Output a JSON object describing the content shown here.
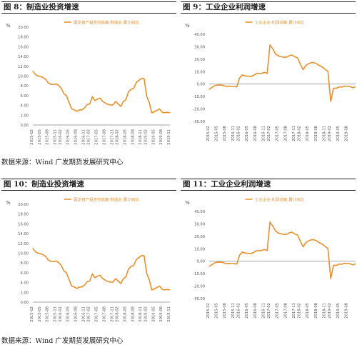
{
  "panels": [
    {
      "fig": "图 8：",
      "title": "制造业投资增速",
      "unit": "%",
      "chart_data": {
        "type": "line",
        "series": [
          {
            "name": "固定资产投资完成额:制造业:累计同比",
            "color": "#e8902c",
            "x": [
              "2015-02",
              "2015-03",
              "2015-04",
              "2015-05",
              "2015-06",
              "2015-07",
              "2015-08",
              "2015-09",
              "2015-10",
              "2015-11",
              "2015-12",
              "2016-02",
              "2016-03",
              "2016-04",
              "2016-05",
              "2016-06",
              "2016-07",
              "2016-08",
              "2016-09",
              "2016-10",
              "2016-11",
              "2016-12",
              "2017-02",
              "2017-03",
              "2017-04",
              "2017-05",
              "2017-06",
              "2017-07",
              "2017-08",
              "2017-09",
              "2017-10",
              "2017-11",
              "2017-12",
              "2018-02",
              "2018-03",
              "2018-04",
              "2018-05",
              "2018-06",
              "2018-07",
              "2018-08",
              "2018-09",
              "2018-10",
              "2018-11",
              "2018-12",
              "2019-02",
              "2019-03",
              "2019-04",
              "2019-05",
              "2019-06",
              "2019-07",
              "2019-08",
              "2019-09",
              "2019-10",
              "2019-11"
            ],
            "values": [
              11.0,
              10.3,
              10.0,
              9.9,
              9.7,
              9.3,
              8.6,
              8.3,
              8.3,
              8.4,
              8.1,
              7.5,
              6.4,
              6.0,
              4.6,
              3.3,
              3.1,
              2.8,
              3.1,
              3.1,
              3.5,
              4.2,
              4.3,
              5.8,
              5.0,
              5.3,
              5.5,
              4.8,
              4.5,
              4.2,
              4.1,
              4.1,
              4.8,
              4.3,
              3.8,
              4.8,
              5.2,
              6.8,
              7.3,
              7.5,
              8.7,
              9.1,
              9.5,
              9.5,
              5.9,
              4.6,
              2.5,
              2.7,
              3.0,
              3.3,
              2.6,
              2.5,
              2.6,
              2.5
            ]
          }
        ],
        "ylim": [
          0,
          20
        ],
        "yticks": [
          "0.00",
          "2.00",
          "4.00",
          "6.00",
          "8.00",
          "10.00",
          "12.00",
          "14.00",
          "16.00",
          "18.00",
          "20.00"
        ],
        "xtick_labels": [
          "2015-02",
          "2015-05",
          "2015-08",
          "2015-11",
          "2016-02",
          "2016-05",
          "2016-08",
          "2016-11",
          "2017-02",
          "2017-05",
          "2017-08",
          "2017-11",
          "2018-02",
          "2018-05",
          "2018-08",
          "2018-11",
          "2019-02",
          "2019-05",
          "2019-08",
          "2019-11"
        ],
        "grid": false,
        "legend": "top"
      }
    },
    {
      "fig": "图 9：",
      "title": "工业企业利润增速",
      "unit": "%",
      "chart_data": {
        "type": "line",
        "series": [
          {
            "name": "工业企业:利润总额:累计同比",
            "color": "#e8902c",
            "x": [
              "2015-02",
              "2015-03",
              "2015-04",
              "2015-05",
              "2015-06",
              "2015-07",
              "2015-08",
              "2015-09",
              "2015-10",
              "2015-11",
              "2015-12",
              "2016-02",
              "2016-03",
              "2016-04",
              "2016-05",
              "2016-06",
              "2016-07",
              "2016-08",
              "2016-09",
              "2016-10",
              "2016-11",
              "2016-12",
              "2017-02",
              "2017-03",
              "2017-04",
              "2017-05",
              "2017-06",
              "2017-07",
              "2017-08",
              "2017-09",
              "2017-10",
              "2017-11",
              "2017-12",
              "2018-02",
              "2018-03",
              "2018-04",
              "2018-05",
              "2018-06",
              "2018-07",
              "2018-08",
              "2018-09",
              "2018-10",
              "2018-11",
              "2018-12",
              "2019-02",
              "2019-03",
              "2019-04",
              "2019-05",
              "2019-06",
              "2019-07",
              "2019-08",
              "2019-09",
              "2019-10",
              "2019-11"
            ],
            "values": [
              -4.2,
              -2.7,
              -1.3,
              -0.8,
              -0.7,
              -1.0,
              -1.9,
              -1.7,
              -1.9,
              -1.9,
              -2.3,
              4.8,
              7.4,
              6.5,
              6.4,
              6.2,
              6.9,
              8.4,
              8.4,
              8.6,
              9.4,
              8.5,
              31.5,
              28.3,
              24.4,
              22.7,
              22.0,
              21.6,
              21.6,
              22.8,
              23.3,
              21.9,
              21.0,
              16.1,
              11.6,
              15.0,
              16.5,
              17.2,
              17.2,
              16.2,
              14.7,
              13.6,
              11.8,
              10.3,
              -14.0,
              -3.3,
              -3.4,
              -2.3,
              -2.4,
              -1.7,
              -1.7,
              -2.1,
              -2.9,
              -2.1
            ]
          }
        ],
        "ylim": [
          -30,
          40
        ],
        "yticks": [
          "-30.00",
          "-20.00",
          "-10.00",
          "0.00",
          "10.00",
          "20.00",
          "30.00",
          "40.00"
        ],
        "xtick_labels": [
          "2015-02",
          "2015-05",
          "2015-08",
          "2015-11",
          "2016-02",
          "2016-05",
          "2016-08",
          "2016-11",
          "2017-02",
          "2017-05",
          "2017-08",
          "2017-11",
          "2018-02",
          "2018-05",
          "2018-08",
          "2018-11",
          "2019-02",
          "2019-05",
          "2019-08"
        ],
        "grid": false,
        "legend": "top"
      }
    },
    {
      "fig": "图 10：",
      "title": "制造业投资增速",
      "unit": "%",
      "chart_data": {
        "type": "line",
        "series": [
          {
            "name": "固定资产投资完成额:制造业:累计同比",
            "color": "#e8902c",
            "x": [
              "2015-02",
              "2015-03",
              "2015-04",
              "2015-05",
              "2015-06",
              "2015-07",
              "2015-08",
              "2015-09",
              "2015-10",
              "2015-11",
              "2015-12",
              "2016-02",
              "2016-03",
              "2016-04",
              "2016-05",
              "2016-06",
              "2016-07",
              "2016-08",
              "2016-09",
              "2016-10",
              "2016-11",
              "2016-12",
              "2017-02",
              "2017-03",
              "2017-04",
              "2017-05",
              "2017-06",
              "2017-07",
              "2017-08",
              "2017-09",
              "2017-10",
              "2017-11",
              "2017-12",
              "2018-02",
              "2018-03",
              "2018-04",
              "2018-05",
              "2018-06",
              "2018-07",
              "2018-08",
              "2018-09",
              "2018-10",
              "2018-11",
              "2018-12",
              "2019-02",
              "2019-03",
              "2019-04",
              "2019-05",
              "2019-06",
              "2019-07",
              "2019-08",
              "2019-09",
              "2019-10",
              "2019-11"
            ],
            "values": [
              11.0,
              10.3,
              10.0,
              9.9,
              9.7,
              9.3,
              8.6,
              8.3,
              8.3,
              8.4,
              8.1,
              7.5,
              6.4,
              6.0,
              4.6,
              3.3,
              3.1,
              2.8,
              3.1,
              3.1,
              3.5,
              4.2,
              4.3,
              5.8,
              5.0,
              5.3,
              5.5,
              4.8,
              4.5,
              4.2,
              4.1,
              4.1,
              4.8,
              4.3,
              3.8,
              4.8,
              5.2,
              6.8,
              7.3,
              7.5,
              8.7,
              9.1,
              9.5,
              9.5,
              5.9,
              4.6,
              2.5,
              2.7,
              3.0,
              3.3,
              2.6,
              2.5,
              2.6,
              2.5
            ]
          }
        ],
        "ylim": [
          0,
          20
        ],
        "yticks": [
          "0.00",
          "2.00",
          "4.00",
          "6.00",
          "8.00",
          "10.00",
          "12.00",
          "14.00",
          "16.00",
          "18.00",
          "20.00"
        ],
        "xtick_labels": [
          "2015-02",
          "2015-05",
          "2015-08",
          "2015-11",
          "2016-02",
          "2016-05",
          "2016-08",
          "2016-11",
          "2017-02",
          "2017-05",
          "2017-08",
          "2017-11",
          "2018-02",
          "2018-05",
          "2018-08",
          "2018-11",
          "2019-02",
          "2019-05",
          "2019-08",
          "2019-11"
        ],
        "grid": false,
        "legend": "top"
      }
    },
    {
      "fig": "图 11：",
      "title": "工业企业利润增速",
      "unit": "%",
      "chart_data": {
        "type": "line",
        "series": [
          {
            "name": "工业企业:利润总额:累计同比",
            "color": "#e8902c",
            "x": [
              "2015-02",
              "2015-03",
              "2015-04",
              "2015-05",
              "2015-06",
              "2015-07",
              "2015-08",
              "2015-09",
              "2015-10",
              "2015-11",
              "2015-12",
              "2016-02",
              "2016-03",
              "2016-04",
              "2016-05",
              "2016-06",
              "2016-07",
              "2016-08",
              "2016-09",
              "2016-10",
              "2016-11",
              "2016-12",
              "2017-02",
              "2017-03",
              "2017-04",
              "2017-05",
              "2017-06",
              "2017-07",
              "2017-08",
              "2017-09",
              "2017-10",
              "2017-11",
              "2017-12",
              "2018-02",
              "2018-03",
              "2018-04",
              "2018-05",
              "2018-06",
              "2018-07",
              "2018-08",
              "2018-09",
              "2018-10",
              "2018-11",
              "2018-12",
              "2019-02",
              "2019-03",
              "2019-04",
              "2019-05",
              "2019-06",
              "2019-07",
              "2019-08",
              "2019-09",
              "2019-10",
              "2019-11"
            ],
            "values": [
              -4.2,
              -2.7,
              -1.3,
              -0.8,
              -0.7,
              -1.0,
              -1.9,
              -1.7,
              -1.9,
              -1.9,
              -2.3,
              4.8,
              7.4,
              6.5,
              6.4,
              6.2,
              6.9,
              8.4,
              8.4,
              8.6,
              9.4,
              8.5,
              31.5,
              28.3,
              24.4,
              22.7,
              22.0,
              21.6,
              21.6,
              22.8,
              23.3,
              21.9,
              21.0,
              16.1,
              11.6,
              15.0,
              16.5,
              17.2,
              17.2,
              16.2,
              14.7,
              13.6,
              11.8,
              10.3,
              -14.0,
              -3.3,
              -3.4,
              -2.3,
              -2.4,
              -1.7,
              -1.7,
              -2.1,
              -2.9,
              -2.1
            ]
          }
        ],
        "ylim": [
          -30,
          40
        ],
        "yticks": [
          "-30.00",
          "-20.00",
          "-10.00",
          "0.00",
          "10.00",
          "20.00",
          "30.00",
          "40.00"
        ],
        "xtick_labels": [
          "2015-02",
          "2015-05",
          "2015-08",
          "2015-11",
          "2016-02",
          "2016-05",
          "2016-08",
          "2016-11",
          "2017-02",
          "2017-05",
          "2017-08",
          "2017-11",
          "2018-02",
          "2018-05",
          "2018-08",
          "2018-11",
          "2019-02",
          "2019-05",
          "2019-08"
        ],
        "grid": false,
        "legend": "top"
      }
    }
  ],
  "sources": [
    "数据来源：Wind 广发期货发展研究中心",
    "数据来源：Wind 广发期货发展研究中心"
  ],
  "colors": {
    "line": "#e8902c",
    "axis": "#888888",
    "text": "#555555"
  }
}
